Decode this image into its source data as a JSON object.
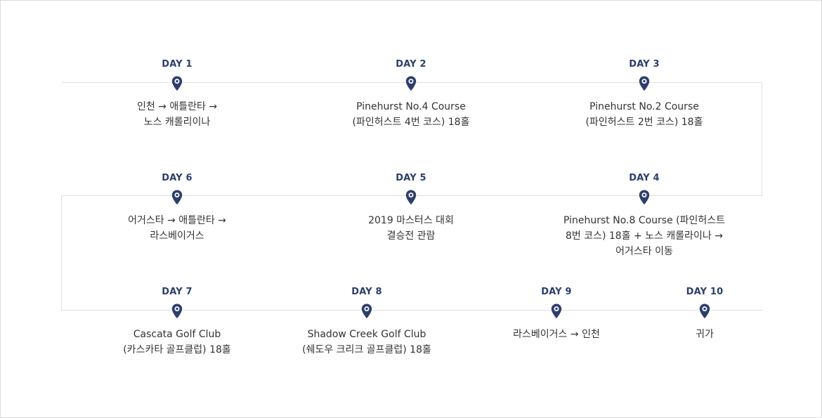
{
  "days": [
    {
      "label": "DAY 1",
      "lines": [
        "인천 → 애틀란타 →",
        "노스 캐롤리이나"
      ]
    },
    {
      "label": "DAY 2",
      "lines": [
        "Pinehurst No.4 Course",
        "(파인허스트 4번 코스) 18홀"
      ]
    },
    {
      "label": "DAY 3",
      "lines": [
        "Pinehurst No.2 Course",
        "(파인허스트 2번 코스) 18홀"
      ]
    },
    {
      "label": "DAY 4",
      "lines": [
        "Pinehurst No.8 Course (파인허스트",
        "8번 코스) 18홀  + 노스 캐롤라이나 →",
        "어거스타 이동"
      ]
    },
    {
      "label": "DAY 5",
      "lines": [
        "2019 마스터스 대회",
        "결승전 관람"
      ]
    },
    {
      "label": "DAY 6",
      "lines": [
        "어거스타  → 애틀란타 →",
        "라스베이거스"
      ]
    },
    {
      "label": "DAY 7",
      "lines": [
        "Cascata Golf Club",
        "(카스카타 골프클럽) 18홀"
      ]
    },
    {
      "label": "DAY 8",
      "lines": [
        "Shadow Creek Golf Club",
        "(쉐도우 크리크 골프클럽) 18홀"
      ]
    },
    {
      "label": "DAY 9",
      "lines": [
        "라스베이거스 → 인천"
      ]
    },
    {
      "label": "DAY 10",
      "lines": [
        "귀가"
      ]
    }
  ],
  "colors": {
    "accent": "#2c3e6b",
    "line": "#e0e0e0",
    "text": "#333333"
  },
  "icon": "map-pin-icon"
}
